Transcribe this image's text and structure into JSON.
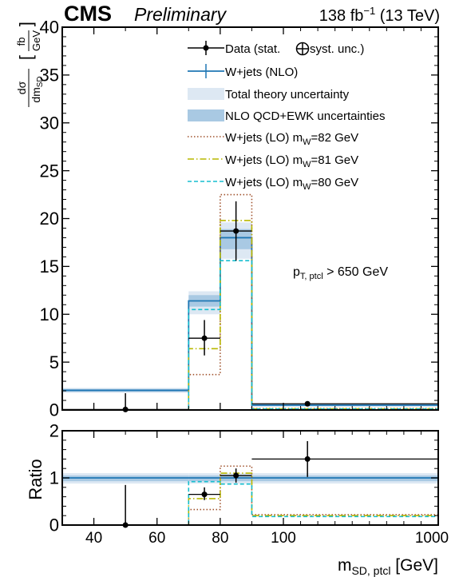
{
  "header": {
    "experiment": "CMS",
    "status": "Preliminary",
    "lumi_value": "138 fb",
    "lumi_exp": "−1",
    "lumi_energy": " (13 TeV)"
  },
  "annotation": {
    "cut_main": "p",
    "cut_sub": "T, ptcl",
    "cut_rest": " > 650 GeV"
  },
  "legend": {
    "data": "Data (stat. ",
    "data_tail": " syst. unc.)",
    "nlo": "W+jets (NLO)",
    "theory": "Total theory uncertainty",
    "qcdewk": "NLO QCD+EWK uncertainties",
    "lo82_pre": "W+jets (LO) m",
    "lo82_sub": "W",
    "lo82_post": "=82 GeV",
    "lo81_pre": "W+jets (LO) m",
    "lo81_sub": "W",
    "lo81_post": "=81 GeV",
    "lo80_pre": "W+jets (LO) m",
    "lo80_sub": "W",
    "lo80_post": "=80 GeV"
  },
  "axes": {
    "ylabel_num": "dσ",
    "ylabel_den": "dm",
    "ylabel_den_sub": "SD",
    "ylabel_unit_num": "fb",
    "ylabel_unit_den": "GeV",
    "ratio_ylabel": "Ratio",
    "xlabel_main": "m",
    "xlabel_sub": "SD, ptcl",
    "xlabel_unit": " [GeV]"
  },
  "colors": {
    "nlo": "#1f77b4",
    "theory_band": "#dde8f3",
    "qcdewk_band": "#a9c9e3",
    "lo82": "#a0522d",
    "lo81": "#b8b800",
    "lo80": "#17becf",
    "data": "#000000"
  },
  "chart_data": [
    {
      "type": "histogram",
      "panel": "main",
      "bins": [
        [
          30,
          70
        ],
        [
          70,
          80
        ],
        [
          80,
          90
        ],
        [
          90,
          1000
        ]
      ],
      "x_tick_labels": [
        "40",
        "60",
        "80",
        "100",
        "1000"
      ],
      "x_tick_values": [
        40,
        60,
        80,
        100,
        1000
      ],
      "ylim": [
        0,
        40
      ],
      "y_ticks": [
        0,
        5,
        10,
        15,
        20,
        25,
        30,
        35,
        40
      ],
      "series": [
        {
          "name": "Data (stat. ⊕ syst. unc.)",
          "kind": "points",
          "x": [
            50,
            75,
            85,
            240
          ],
          "values": [
            0.05,
            7.5,
            18.7,
            0.65
          ],
          "err_low": [
            0.05,
            1.8,
            3.1,
            0.2
          ],
          "err_high": [
            1.7,
            1.9,
            3.1,
            0.2
          ]
        },
        {
          "name": "W+jets (NLO)",
          "kind": "step",
          "values": [
            2.05,
            11.4,
            18.0,
            0.5
          ]
        },
        {
          "name": "Total theory uncertainty",
          "kind": "band",
          "low": [
            1.8,
            10.0,
            15.8,
            0.35
          ],
          "high": [
            2.3,
            12.4,
            19.6,
            0.6
          ]
        },
        {
          "name": "NLO QCD+EWK uncertainties",
          "kind": "band",
          "low": [
            1.9,
            10.8,
            16.8,
            0.4
          ],
          "high": [
            2.2,
            12.0,
            18.9,
            0.55
          ]
        },
        {
          "name": "W+jets (LO) mW=82 GeV",
          "kind": "step",
          "style": "dotted",
          "values": [
            0.0,
            3.7,
            22.5,
            0.15
          ]
        },
        {
          "name": "W+jets (LO) mW=81 GeV",
          "kind": "step",
          "style": "dashdot",
          "values": [
            0.0,
            6.4,
            19.8,
            0.12
          ]
        },
        {
          "name": "W+jets (LO) mW=80 GeV",
          "kind": "step",
          "style": "dashed",
          "values": [
            0.0,
            10.5,
            15.6,
            0.1
          ]
        }
      ]
    },
    {
      "type": "histogram",
      "panel": "ratio",
      "bins": [
        [
          30,
          70
        ],
        [
          70,
          80
        ],
        [
          80,
          90
        ],
        [
          90,
          1000
        ]
      ],
      "ylim": [
        0,
        2
      ],
      "y_ticks": [
        0,
        1,
        2
      ],
      "series": [
        {
          "name": "Data (stat. ⊕ syst. unc.)",
          "kind": "points",
          "x": [
            50,
            75,
            85,
            240
          ],
          "values": [
            0.0,
            0.65,
            1.05,
            1.4
          ],
          "err_low": [
            0.0,
            0.12,
            0.15,
            0.38
          ],
          "err_high": [
            0.85,
            0.15,
            0.15,
            0.38
          ]
        },
        {
          "name": "W+jets (NLO)",
          "kind": "step",
          "values": [
            1.0,
            1.0,
            1.0,
            1.0
          ]
        },
        {
          "name": "Total theory uncertainty",
          "kind": "band",
          "low": [
            0.88,
            0.88,
            0.88,
            0.88
          ],
          "high": [
            1.1,
            1.1,
            1.1,
            1.1
          ]
        },
        {
          "name": "NLO QCD+EWK uncertainties",
          "kind": "band",
          "low": [
            0.93,
            0.93,
            0.93,
            0.93
          ],
          "high": [
            1.05,
            1.05,
            1.05,
            1.05
          ]
        },
        {
          "name": "W+jets (LO) mW=82 GeV",
          "kind": "step",
          "style": "dotted",
          "values": [
            0.0,
            0.33,
            1.25,
            0.22
          ]
        },
        {
          "name": "W+jets (LO) mW=81 GeV",
          "kind": "step",
          "style": "dashdot",
          "values": [
            0.0,
            0.56,
            1.1,
            0.2
          ]
        },
        {
          "name": "W+jets (LO) mW=80 GeV",
          "kind": "step",
          "style": "dashed",
          "values": [
            0.0,
            0.92,
            0.87,
            0.18
          ]
        }
      ]
    }
  ]
}
